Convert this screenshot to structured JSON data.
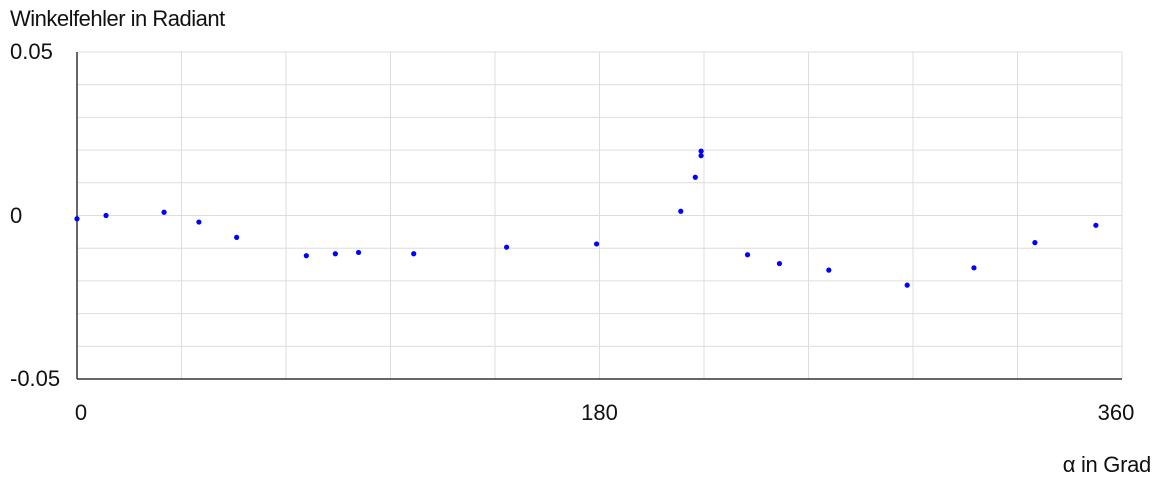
{
  "chart_data": {
    "type": "scatter",
    "ylabel": "Winkelfehler in Radiant",
    "xlabel": "α in Grad",
    "xlim": [
      0,
      360
    ],
    "ylim": [
      -0.05,
      0.05
    ],
    "xticks": [
      {
        "value": 0,
        "label": "0"
      },
      {
        "value": 180,
        "label": "180"
      },
      {
        "value": 360,
        "label": "360"
      }
    ],
    "yticks": [
      {
        "value": 0.05,
        "label": "0.05"
      },
      {
        "value": 0,
        "label": "0"
      },
      {
        "value": -0.05,
        "label": "-0.05"
      }
    ],
    "grid": true,
    "point_color": "#0000ff",
    "grid_color": "#d9dedf",
    "axis_color": "#333333",
    "points": [
      {
        "x": 0,
        "y": -0.001
      },
      {
        "x": 10,
        "y": 0.0
      },
      {
        "x": 30,
        "y": 0.001
      },
      {
        "x": 42,
        "y": -0.002
      },
      {
        "x": 55,
        "y": -0.0067
      },
      {
        "x": 79,
        "y": -0.0123
      },
      {
        "x": 89,
        "y": -0.0117
      },
      {
        "x": 97,
        "y": -0.0113
      },
      {
        "x": 116,
        "y": -0.0117
      },
      {
        "x": 148,
        "y": -0.0097
      },
      {
        "x": 179,
        "y": -0.0087
      },
      {
        "x": 208,
        "y": 0.0013
      },
      {
        "x": 213,
        "y": 0.0117
      },
      {
        "x": 215,
        "y": 0.0183
      },
      {
        "x": 215,
        "y": 0.0197
      },
      {
        "x": 231,
        "y": -0.012
      },
      {
        "x": 242,
        "y": -0.0147
      },
      {
        "x": 259,
        "y": -0.0167
      },
      {
        "x": 286,
        "y": -0.0213
      },
      {
        "x": 309,
        "y": -0.016
      },
      {
        "x": 330,
        "y": -0.0083
      },
      {
        "x": 351,
        "y": -0.003
      }
    ]
  }
}
